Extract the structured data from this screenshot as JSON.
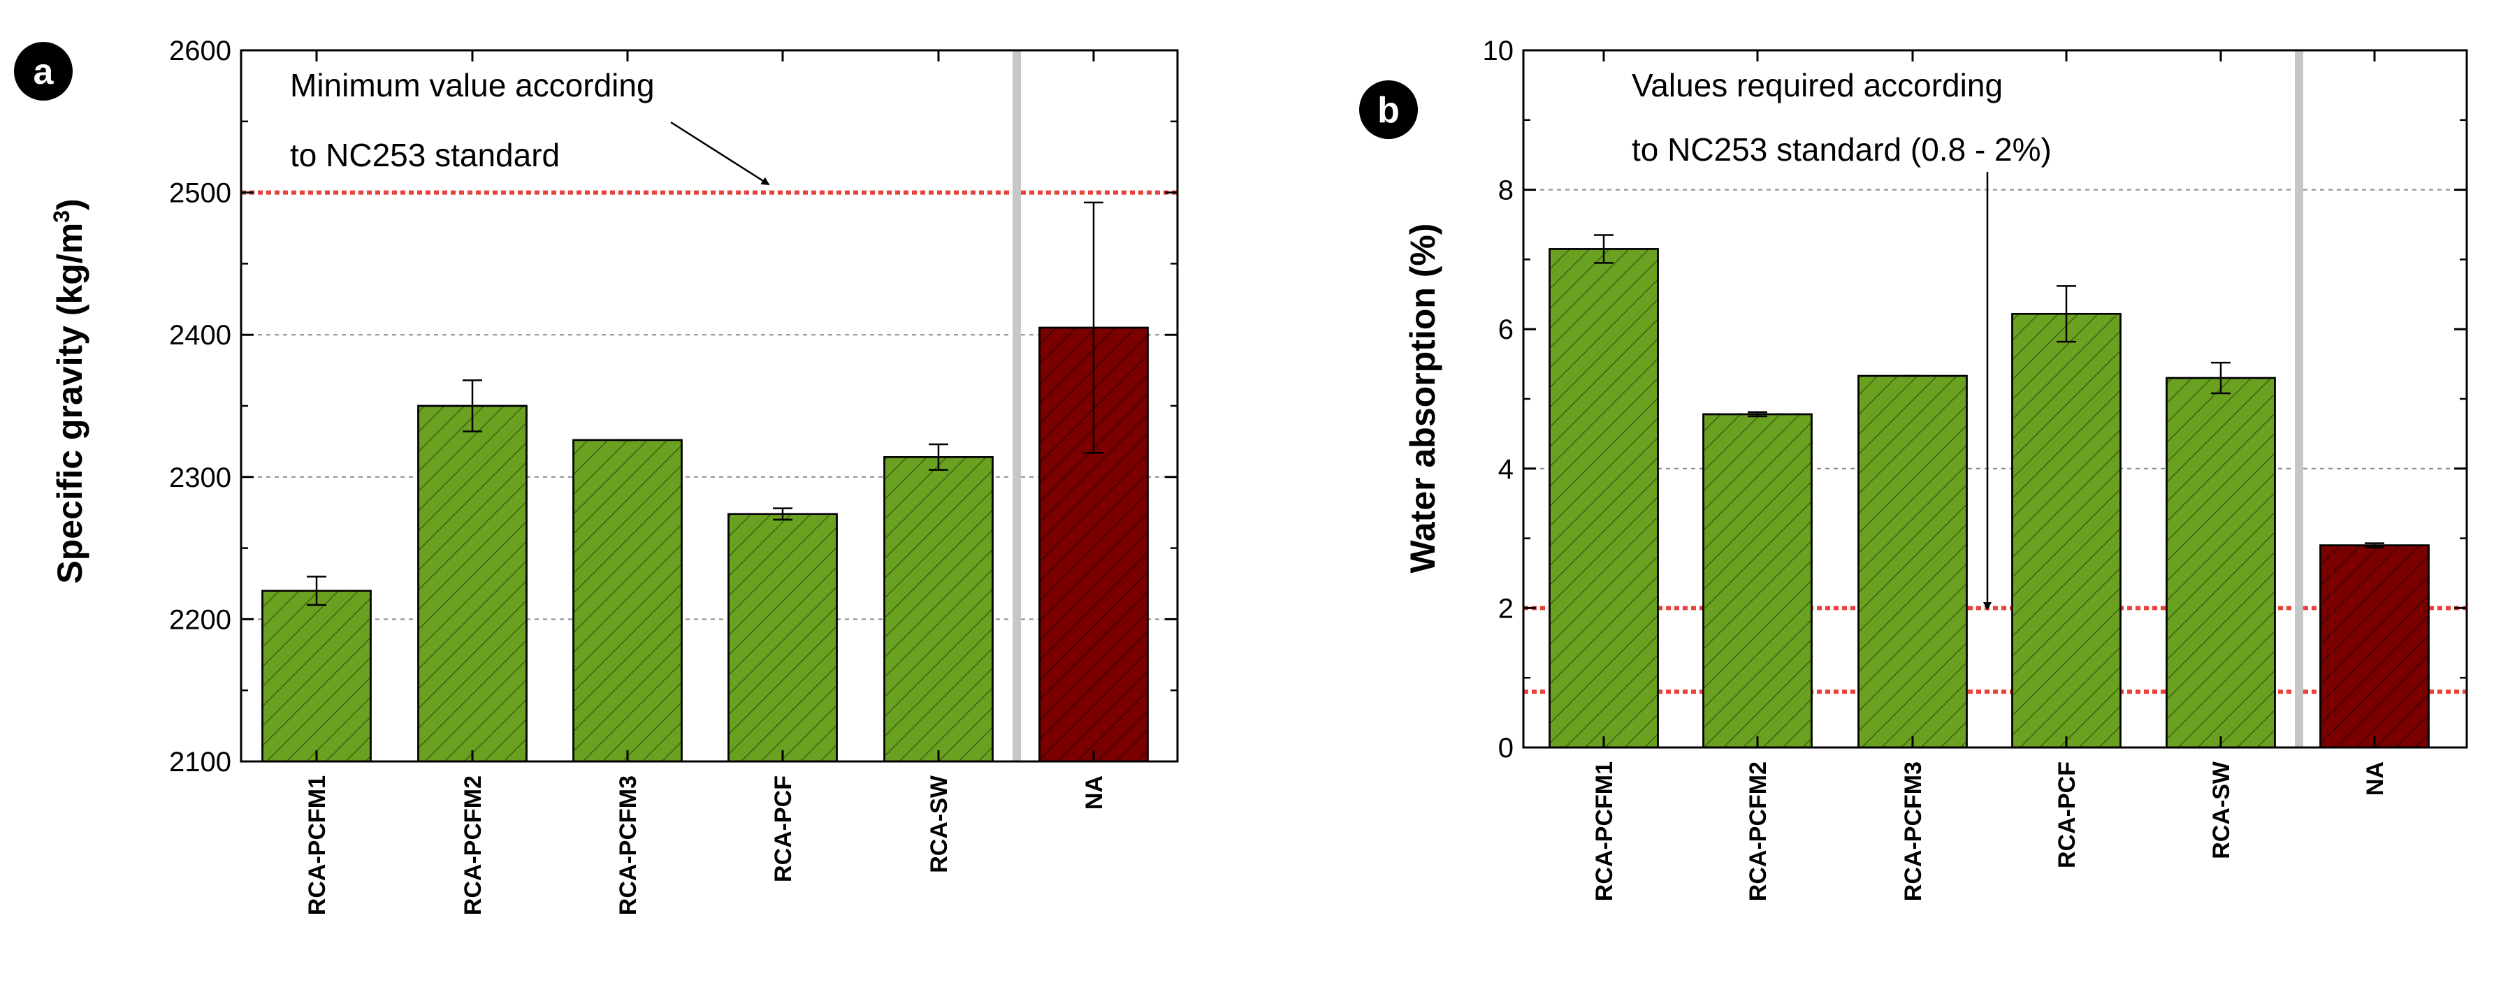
{
  "chart_data": [
    {
      "type": "bar",
      "panel_label": "a",
      "categories": [
        "RCA-PCFM1",
        "RCA-PCFM2",
        "RCA-PCFM3",
        "RCA-PCF",
        "RCA-SW",
        "NA"
      ],
      "values": [
        2220,
        2350,
        2326,
        2274,
        2314,
        2405
      ],
      "errors": [
        10,
        18,
        0,
        4,
        9,
        88
      ],
      "bar_colors": [
        "#6aa121",
        "#6aa121",
        "#6aa121",
        "#6aa121",
        "#6aa121",
        "#7a0000"
      ],
      "ylabel": "Specific gravity (kg/m",
      "ylabel_sup": "3",
      "ylabel_close": ")",
      "ylim": [
        2100,
        2600
      ],
      "yticks": [
        2100,
        2200,
        2300,
        2400,
        2500,
        2600
      ],
      "gridlines": [
        2200,
        2300,
        2400
      ],
      "reference_lines": [
        2500
      ],
      "reference_color": "#e8423a",
      "annotation_lines": [
        "Minimum value according",
        "to NC253 standard"
      ]
    },
    {
      "type": "bar",
      "panel_label": "b",
      "categories": [
        "RCA-PCFM1",
        "RCA-PCFM2",
        "RCA-PCFM3",
        "RCA-PCF",
        "RCA-SW",
        "NA"
      ],
      "values": [
        7.15,
        4.78,
        5.33,
        6.22,
        5.3,
        2.9
      ],
      "errors": [
        0.2,
        0.03,
        0.0,
        0.4,
        0.22,
        0.03
      ],
      "bar_colors": [
        "#6aa121",
        "#6aa121",
        "#6aa121",
        "#6aa121",
        "#6aa121",
        "#7a0000"
      ],
      "ylabel": "Water absorption  (%)",
      "ylim": [
        0,
        10
      ],
      "yticks": [
        0,
        2,
        4,
        6,
        8,
        10
      ],
      "gridlines": [
        4,
        8
      ],
      "reference_lines": [
        0.8,
        2
      ],
      "reference_color": "#e8423a",
      "annotation_lines": [
        "Values required according",
        "to NC253 standard (0.8 - 2%)"
      ]
    }
  ]
}
